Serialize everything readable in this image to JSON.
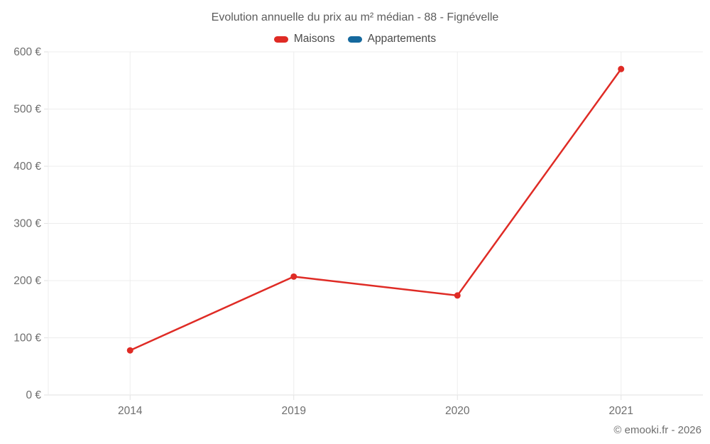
{
  "title": "Evolution annuelle du prix au m² médian - 88 - Fignévelle",
  "footer": "© emooki.fr - 2026",
  "chart_data": {
    "type": "line",
    "title": "Evolution annuelle du prix au m² médian - 88 - Fignévelle",
    "categories": [
      "2014",
      "2019",
      "2020",
      "2021"
    ],
    "series": [
      {
        "name": "Maisons",
        "color": "#df2b25",
        "values": [
          78,
          207,
          174,
          570
        ]
      },
      {
        "name": "Appartements",
        "color": "#15699e",
        "values": []
      }
    ],
    "xlabel": "",
    "ylabel": "",
    "ylim": [
      0,
      600
    ],
    "ytick_step": 100,
    "ytick_labels": [
      "0 €",
      "100 €",
      "200 €",
      "300 €",
      "400 €",
      "500 €",
      "600 €"
    ],
    "grid": true,
    "legend_position": "top",
    "colors": {
      "gridline": "#ededed",
      "axis": "#e2e2e2",
      "tick_label": "#6e6e6e"
    }
  }
}
